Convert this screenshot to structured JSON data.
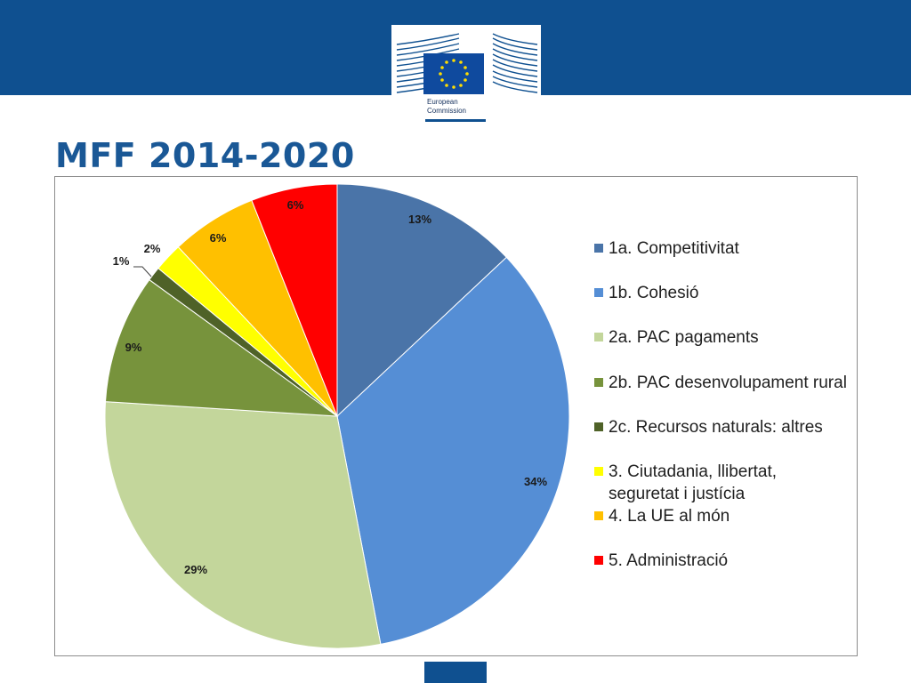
{
  "header": {
    "logo_text_line1": "European",
    "logo_text_line2": "Commission",
    "brand_color": "#0f5090"
  },
  "page": {
    "title": "MFF 2014-2020"
  },
  "chart_data": {
    "type": "pie",
    "title": "",
    "start": "12 o'clock",
    "direction": "clockwise",
    "legend_position": "right",
    "slices": [
      {
        "label": "1a.  Competitivitat",
        "value": 13,
        "value_label": "13%",
        "color": "#4a74a8"
      },
      {
        "label": "1b.  Cohesió",
        "value": 34,
        "value_label": "34%",
        "color": "#558ed5"
      },
      {
        "label": "2a. PAC pagaments",
        "value": 29,
        "value_label": "29%",
        "color": "#c3d69b"
      },
      {
        "label": "2b.  PAC desenvolupament rural",
        "value": 9,
        "value_label": "9%",
        "color": "#77933c"
      },
      {
        "label": "2c.  Recursos naturals:  altres",
        "value": 1,
        "value_label": "1%",
        "color": "#4f6228"
      },
      {
        "label": "3.  Ciutadania, llibertat,\nseguretat i justícia",
        "value": 2,
        "value_label": "2%",
        "color": "#ffff00"
      },
      {
        "label": "4.  La UE al món",
        "value": 6,
        "value_label": "6%",
        "color": "#ffc000"
      },
      {
        "label": "5.  Administració",
        "value": 6,
        "value_label": "6%",
        "color": "#ff0000"
      }
    ]
  }
}
